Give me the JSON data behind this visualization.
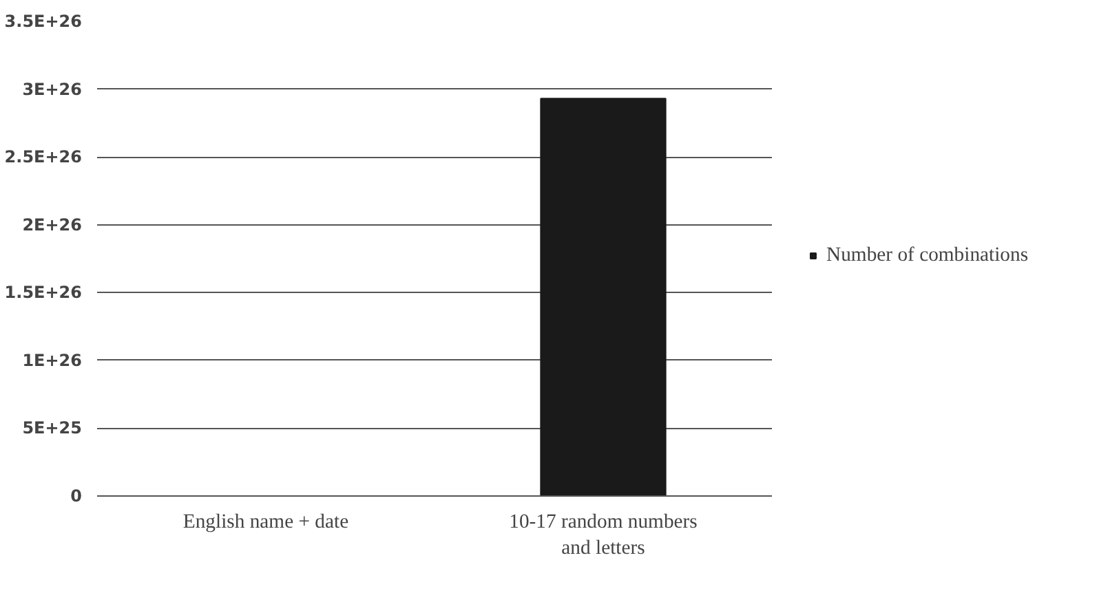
{
  "chart_data": {
    "type": "bar",
    "categories": [
      "English name + date",
      "10-17 random numbers and letters"
    ],
    "series": [
      {
        "name": "Number of combinations",
        "color": "#1a1a1a",
        "values": [
          0,
          2.93e+26
        ]
      }
    ],
    "ylim": [
      0,
      3.5e+26
    ],
    "yticks": [
      0,
      {
        "value": 5e+25,
        "label": "5E+25"
      },
      {
        "value": 1e+26,
        "label": "1E+26"
      },
      {
        "value": 1.5e+26,
        "label": "1.5E+26"
      },
      {
        "value": 2e+26,
        "label": "2E+26"
      },
      {
        "value": 2.5e+26,
        "label": "2.5E+26"
      },
      {
        "value": 3e+26,
        "label": "3E+26"
      },
      {
        "value": 3.5e+26,
        "label": "3.5E+26"
      }
    ],
    "grid": "y",
    "legend": "right"
  }
}
